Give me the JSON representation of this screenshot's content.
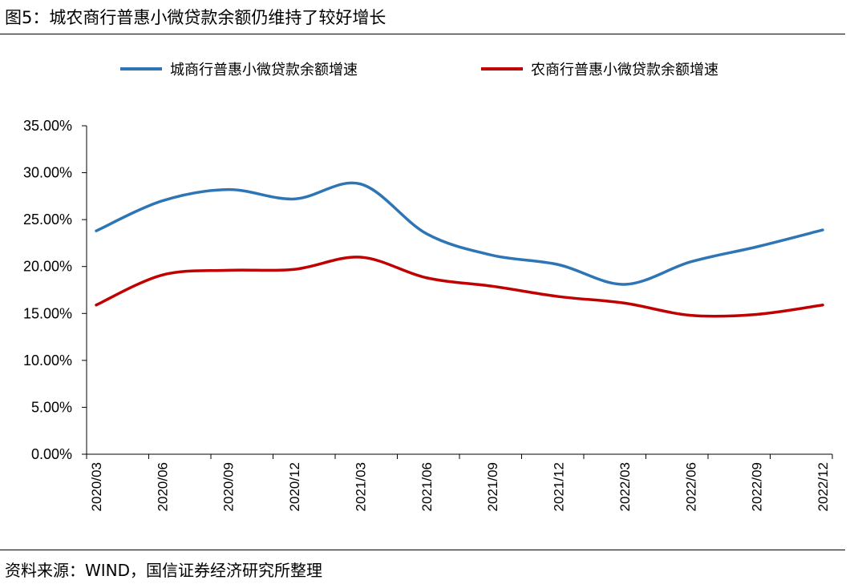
{
  "header": {
    "title": "图5：城农商行普惠小微贷款余额仍维持了较好增长"
  },
  "footer": {
    "source": "资料来源：WIND，国信证券经济研究所整理"
  },
  "chart_data": {
    "type": "line",
    "title": "图5：城农商行普惠小微贷款余额仍维持了较好增长",
    "xlabel": "",
    "ylabel": "",
    "categories": [
      "2020/03",
      "2020/06",
      "2020/09",
      "2020/12",
      "2021/03",
      "2021/06",
      "2021/09",
      "2021/12",
      "2022/03",
      "2022/06",
      "2022/09",
      "2022/12"
    ],
    "y_ticks": [
      "0.00%",
      "5.00%",
      "10.00%",
      "15.00%",
      "20.00%",
      "25.00%",
      "30.00%",
      "35.00%"
    ],
    "ylim": [
      0,
      35
    ],
    "grid": false,
    "legend_position": "top",
    "series": [
      {
        "name": "城商行普惠小微贷款余额增速",
        "color": "#2E75B6",
        "values": [
          23.8,
          27.0,
          28.2,
          27.2,
          28.8,
          23.5,
          21.2,
          20.2,
          18.1,
          20.5,
          22.1,
          23.9
        ]
      },
      {
        "name": "农商行普惠小微贷款余额增速",
        "color": "#C00000",
        "values": [
          15.9,
          19.1,
          19.6,
          19.7,
          21.0,
          18.8,
          17.9,
          16.8,
          16.1,
          14.8,
          14.9,
          15.9
        ]
      }
    ]
  }
}
